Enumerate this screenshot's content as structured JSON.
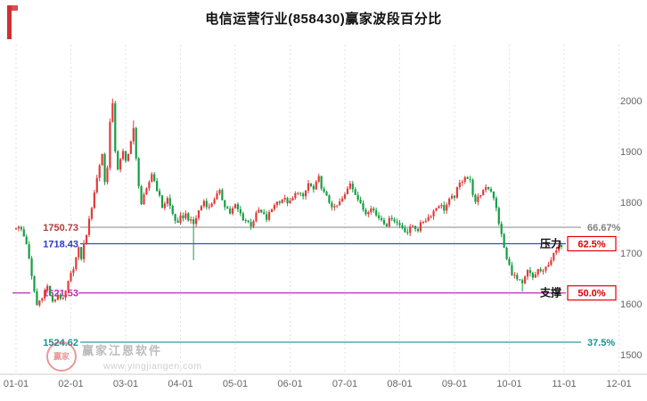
{
  "title": "电信运营行业(858430)赢家波段百分比",
  "watermark": {
    "seal_text": "赢家",
    "brand": "赢家江恩软件",
    "url": "www.yingjiangen.com"
  },
  "chart_data": {
    "type": "candlestick",
    "title": "电信运营行业(858430)赢家波段百分比",
    "x_tick_labels": [
      "01-01",
      "02-01",
      "03-01",
      "04-01",
      "05-01",
      "06-01",
      "07-01",
      "08-01",
      "09-01",
      "10-01",
      "11-01",
      "12-01"
    ],
    "y_ticks": [
      1500,
      1600,
      1700,
      1800,
      1900,
      2000
    ],
    "y_axis_side": "right",
    "grid": "vertical-dashed",
    "levels": [
      {
        "value": 1750.73,
        "label": "1750.73",
        "percent": "66.67%",
        "line_color": "#a8a8a8",
        "label_color": "#b03a3a",
        "percent_color": "#808080",
        "boxed": false,
        "tag": "",
        "full_width": false
      },
      {
        "value": 1718.43,
        "label": "1718.43",
        "percent": "62.5%",
        "line_color": "#3947c8",
        "label_color": "#2b39c8",
        "percent_color": "#e00000",
        "boxed": true,
        "tag": "压力",
        "full_width": false
      },
      {
        "value": 1621.53,
        "label": "1621.53",
        "percent": "50.0%",
        "line_color": "#b52cb5",
        "label_color": "#b52cb5",
        "percent_color": "#e00000",
        "boxed": true,
        "tag": "支撑",
        "full_width": true
      },
      {
        "value": 1524.62,
        "label": "1524.62",
        "percent": "37.5%",
        "line_color": "#2b9e9e",
        "label_color": "#18918f",
        "percent_color": "#18918f",
        "boxed": false,
        "tag": "",
        "full_width": false
      }
    ],
    "colors": {
      "up": "#e23b3b",
      "down": "#159e43",
      "grid": "#e2e2e2",
      "axis_text": "#666666",
      "axis_line": "#cccccc"
    },
    "days_total": 210,
    "noise_amplitude": 11,
    "wick_extra": 7,
    "series_anchors": [
      [
        0,
        1752
      ],
      [
        2,
        1746
      ],
      [
        4,
        1720
      ],
      [
        6,
        1652
      ],
      [
        8,
        1597
      ],
      [
        10,
        1616
      ],
      [
        12,
        1634
      ],
      [
        14,
        1601
      ],
      [
        16,
        1619
      ],
      [
        18,
        1607
      ],
      [
        20,
        1641
      ],
      [
        22,
        1673
      ],
      [
        24,
        1707
      ],
      [
        25,
        1691
      ],
      [
        26,
        1716
      ],
      [
        28,
        1763
      ],
      [
        30,
        1821
      ],
      [
        32,
        1874
      ],
      [
        33,
        1896
      ],
      [
        34,
        1839
      ],
      [
        35,
        1872
      ],
      [
        36,
        1957
      ],
      [
        37,
        1990
      ],
      [
        38,
        1903
      ],
      [
        39,
        1867
      ],
      [
        41,
        1897
      ],
      [
        42,
        1880
      ],
      [
        44,
        1920
      ],
      [
        45,
        1943
      ],
      [
        46,
        1884
      ],
      [
        47,
        1836
      ],
      [
        48,
        1797
      ],
      [
        50,
        1823
      ],
      [
        52,
        1857
      ],
      [
        54,
        1827
      ],
      [
        56,
        1791
      ],
      [
        58,
        1807
      ],
      [
        60,
        1777
      ],
      [
        62,
        1755
      ],
      [
        63,
        1769
      ],
      [
        65,
        1776
      ],
      [
        67,
        1761
      ],
      [
        68,
        1757
      ],
      [
        70,
        1783
      ],
      [
        72,
        1803
      ],
      [
        74,
        1789
      ],
      [
        76,
        1809
      ],
      [
        78,
        1819
      ],
      [
        80,
        1795
      ],
      [
        82,
        1779
      ],
      [
        84,
        1793
      ],
      [
        87,
        1769
      ],
      [
        90,
        1756
      ],
      [
        93,
        1784
      ],
      [
        96,
        1767
      ],
      [
        99,
        1797
      ],
      [
        102,
        1807
      ],
      [
        105,
        1799
      ],
      [
        108,
        1823
      ],
      [
        110,
        1807
      ],
      [
        112,
        1837
      ],
      [
        114,
        1824
      ],
      [
        116,
        1847
      ],
      [
        118,
        1817
      ],
      [
        120,
        1801
      ],
      [
        122,
        1787
      ],
      [
        124,
        1799
      ],
      [
        126,
        1813
      ],
      [
        128,
        1839
      ],
      [
        130,
        1819
      ],
      [
        132,
        1794
      ],
      [
        134,
        1779
      ],
      [
        136,
        1793
      ],
      [
        138,
        1774
      ],
      [
        140,
        1767
      ],
      [
        142,
        1757
      ],
      [
        144,
        1771
      ],
      [
        146,
        1759
      ],
      [
        148,
        1751
      ],
      [
        150,
        1741
      ],
      [
        152,
        1754
      ],
      [
        154,
        1747
      ],
      [
        156,
        1763
      ],
      [
        158,
        1771
      ],
      [
        160,
        1783
      ],
      [
        162,
        1796
      ],
      [
        164,
        1787
      ],
      [
        166,
        1803
      ],
      [
        168,
        1813
      ],
      [
        170,
        1836
      ],
      [
        172,
        1853
      ],
      [
        174,
        1841
      ],
      [
        176,
        1797
      ],
      [
        178,
        1816
      ],
      [
        180,
        1833
      ],
      [
        182,
        1824
      ],
      [
        184,
        1787
      ],
      [
        186,
        1734
      ],
      [
        188,
        1687
      ],
      [
        190,
        1661
      ],
      [
        192,
        1647
      ],
      [
        194,
        1637
      ],
      [
        196,
        1664
      ],
      [
        198,
        1651
      ],
      [
        200,
        1667
      ],
      [
        202,
        1661
      ],
      [
        204,
        1681
      ],
      [
        206,
        1696
      ],
      [
        208,
        1711
      ],
      [
        209,
        1717
      ]
    ],
    "special_wicks": [
      {
        "day": 37,
        "high": 2004
      },
      {
        "day": 45,
        "high": 1961
      },
      {
        "day": 68,
        "low": 1686
      },
      {
        "day": 194,
        "low": 1624
      }
    ]
  }
}
